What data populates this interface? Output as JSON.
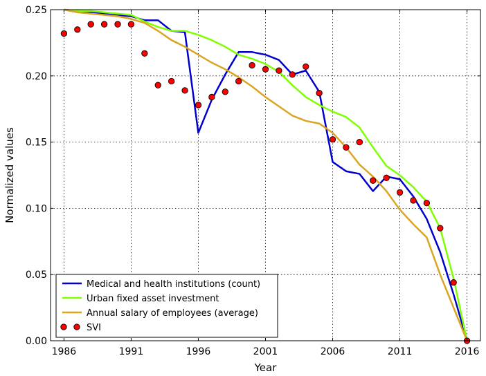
{
  "chart_data": {
    "type": "line",
    "title": "",
    "xlabel": "Year",
    "ylabel": "Normalized values",
    "xlim": [
      1985,
      2017
    ],
    "ylim": [
      0,
      0.25
    ],
    "grid": true,
    "x": [
      1986,
      1987,
      1988,
      1989,
      1990,
      1991,
      1992,
      1993,
      1994,
      1995,
      1996,
      1997,
      1998,
      1999,
      2000,
      2001,
      2002,
      2003,
      2004,
      2005,
      2006,
      2007,
      2008,
      2009,
      2010,
      2011,
      2012,
      2013,
      2014,
      2015,
      2016
    ],
    "xticks": [
      1986,
      1991,
      1996,
      2001,
      2006,
      2011,
      2016
    ],
    "xtick_labels": [
      "1986",
      "1991",
      "1996",
      "2001",
      "2006",
      "2011",
      "2016"
    ],
    "yticks": [
      0,
      0.05,
      0.1,
      0.15,
      0.2,
      0.25
    ],
    "ytick_labels": [
      "0.00",
      "0.05",
      "0.10",
      "0.15",
      "0.20",
      "0.25"
    ],
    "legend_position": "bottom-left",
    "series": [
      {
        "name": "Medical and health institutions (count)",
        "kind": "line",
        "color": "#0000cc",
        "values": [
          0.25,
          0.249,
          0.248,
          0.247,
          0.246,
          0.245,
          0.242,
          0.242,
          0.234,
          0.233,
          0.157,
          0.182,
          0.201,
          0.218,
          0.218,
          0.216,
          0.212,
          0.201,
          0.204,
          0.188,
          0.135,
          0.128,
          0.126,
          0.113,
          0.124,
          0.122,
          0.109,
          0.092,
          0.067,
          0.035,
          0.0
        ]
      },
      {
        "name": "Urban fixed asset investment",
        "kind": "line",
        "color": "#7fff00",
        "values": [
          0.25,
          0.249,
          0.249,
          0.248,
          0.247,
          0.246,
          0.241,
          0.237,
          0.234,
          0.234,
          0.231,
          0.227,
          0.222,
          0.216,
          0.213,
          0.209,
          0.203,
          0.193,
          0.184,
          0.178,
          0.173,
          0.169,
          0.161,
          0.146,
          0.132,
          0.125,
          0.116,
          0.105,
          0.085,
          0.047,
          0.0
        ]
      },
      {
        "name": "Annual salary of employees (average)",
        "kind": "line",
        "color": "#daa520",
        "values": [
          0.25,
          0.248,
          0.247,
          0.246,
          0.245,
          0.243,
          0.24,
          0.234,
          0.227,
          0.222,
          0.216,
          0.21,
          0.205,
          0.199,
          0.192,
          0.184,
          0.177,
          0.17,
          0.166,
          0.164,
          0.157,
          0.146,
          0.133,
          0.124,
          0.113,
          0.099,
          0.088,
          0.078,
          0.05,
          0.025,
          0.0
        ]
      },
      {
        "name": "SVI",
        "kind": "scatter",
        "color": "#ff0000",
        "values": [
          0.232,
          0.235,
          0.239,
          0.239,
          0.239,
          0.239,
          0.217,
          0.193,
          0.196,
          0.189,
          0.178,
          0.184,
          0.188,
          0.196,
          0.208,
          0.205,
          0.204,
          0.201,
          0.207,
          0.187,
          0.152,
          0.146,
          0.15,
          0.121,
          0.123,
          0.112,
          0.106,
          0.104,
          0.085,
          0.044,
          0.0
        ]
      }
    ]
  }
}
